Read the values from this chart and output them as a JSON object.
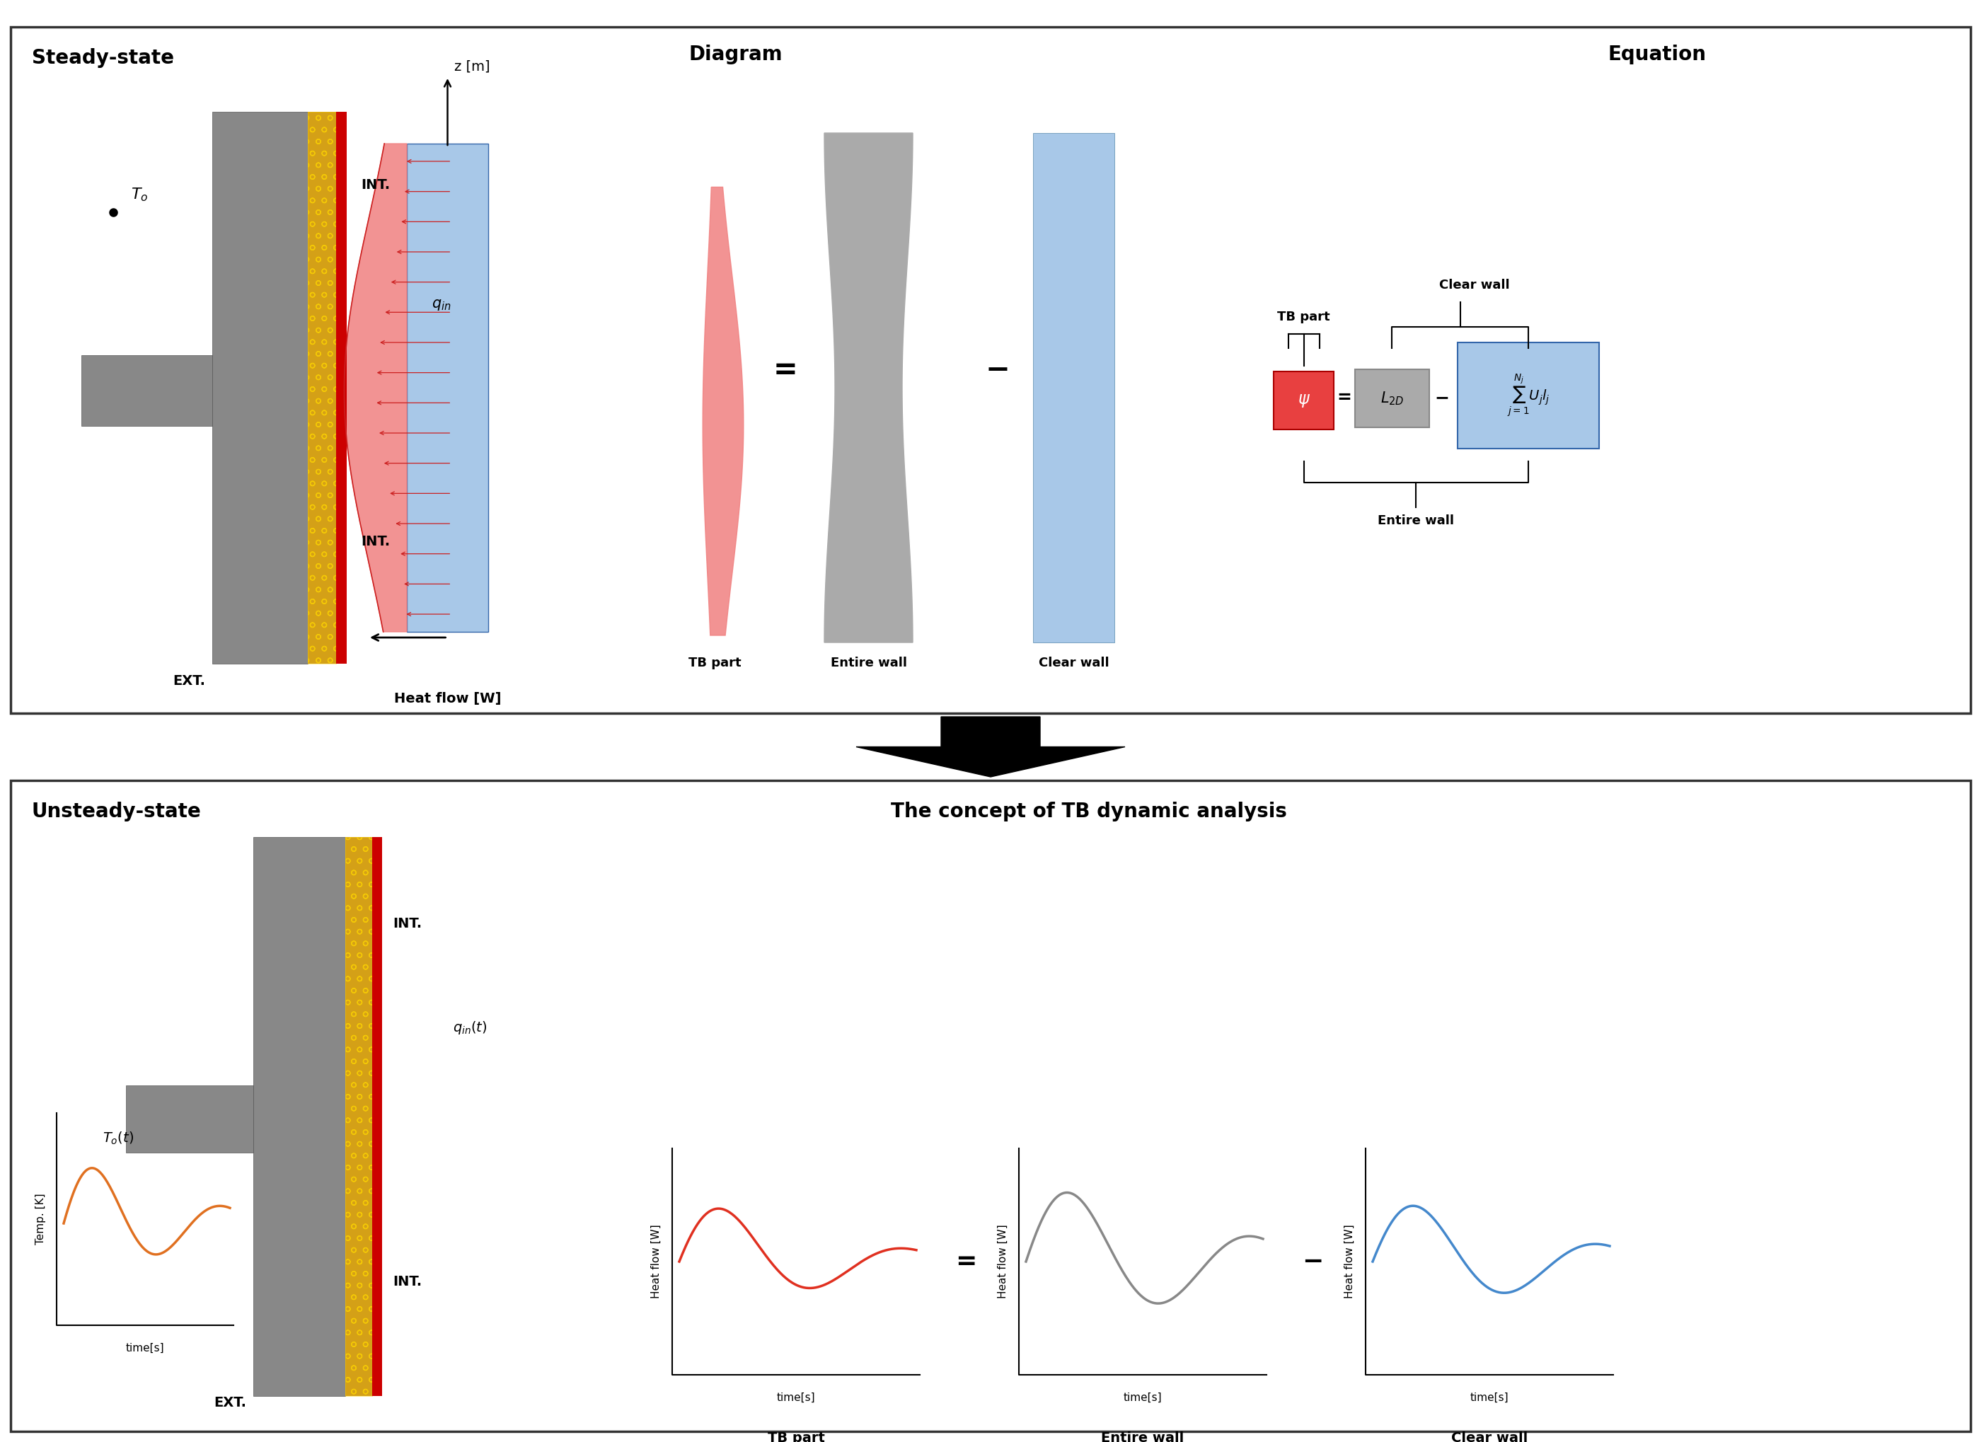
{
  "bg_color": "#ffffff",
  "top_panel_title": "Steady-state",
  "bottom_panel_title": "Unsteady-state",
  "bottom_panel_subtitle": "The concept of TB dynamic analysis",
  "diagram_label": "Diagram",
  "equation_label": "Equation",
  "z_label": "z [m]",
  "heat_flow_label": "Heat flow [W]",
  "tb_part_label": "TB part",
  "entire_wall_label": "Entire wall",
  "clear_wall_label": "Clear wall",
  "int_label": "INT.",
  "ext_label": "EXT.",
  "wall_gray": "#888888",
  "wall_gray_dark": "#555555",
  "wall_insulation_gold": "#D4A017",
  "wall_red_stripe": "#CC0000",
  "heat_flow_blue": "#A8C8E8",
  "tb_shape_red": "#F08080",
  "gray_shape": "#AAAAAA",
  "blue_shape": "#A8C8E8",
  "red_curve_color": "#E03020",
  "gray_curve_color": "#888888",
  "blue_curve_color": "#4488CC",
  "orange_curve_color": "#E07020",
  "psi_box_color": "#E84040",
  "L2D_box_color": "#AAAAAA",
  "sum_box_color": "#A8C8E8",
  "panel_border": "#333333",
  "panel_lw": 2.5,
  "title_fontsize": 20,
  "label_fontsize": 14,
  "small_fontsize": 11
}
